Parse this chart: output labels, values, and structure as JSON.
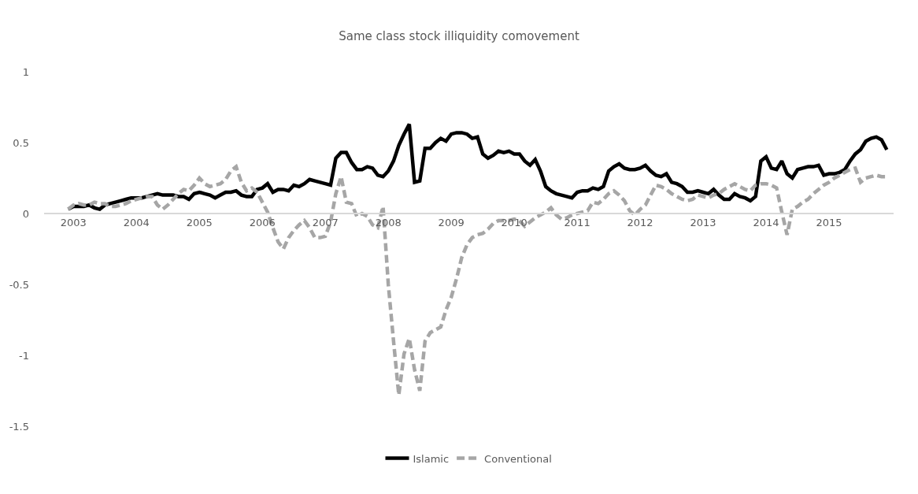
{
  "chart_data": {
    "type": "line",
    "title": "Same class stock illiquidity comovement",
    "categories": [
      null,
      "2003",
      null,
      null,
      null,
      null,
      null,
      null,
      null,
      null,
      null,
      null,
      null,
      "2004",
      null,
      null,
      null,
      null,
      null,
      null,
      null,
      null,
      null,
      null,
      null,
      "2005",
      null,
      null,
      null,
      null,
      null,
      null,
      null,
      null,
      null,
      null,
      null,
      "2006",
      null,
      null,
      null,
      null,
      null,
      null,
      null,
      null,
      null,
      null,
      null,
      "2007",
      null,
      null,
      null,
      null,
      null,
      null,
      null,
      null,
      null,
      null,
      null,
      "2008",
      null,
      null,
      null,
      null,
      null,
      null,
      null,
      null,
      null,
      null,
      null,
      "2009",
      null,
      null,
      null,
      null,
      null,
      null,
      null,
      null,
      null,
      null,
      null,
      "2010",
      null,
      null,
      null,
      null,
      null,
      null,
      null,
      null,
      null,
      null,
      null,
      "2011",
      null,
      null,
      null,
      null,
      null,
      null,
      null,
      null,
      null,
      null,
      null,
      "2012",
      null,
      null,
      null,
      null,
      null,
      null,
      null,
      null,
      null,
      null,
      null,
      "2013",
      null,
      null,
      null,
      null,
      null,
      null,
      null,
      null,
      null,
      null,
      null,
      "2014",
      null,
      null,
      null,
      null,
      null,
      null,
      null,
      null,
      null,
      null,
      null,
      "2015",
      null,
      null,
      null,
      null,
      null,
      null,
      null,
      null,
      null,
      null,
      null
    ],
    "series": [
      {
        "name": "Islamic",
        "color": "#000000",
        "line_style": "solid",
        "values": [
          0.03,
          0.05,
          0.05,
          0.05,
          0.06,
          0.04,
          0.03,
          0.06,
          0.07,
          0.08,
          0.09,
          0.1,
          0.11,
          0.11,
          0.11,
          0.12,
          0.13,
          0.14,
          0.13,
          0.13,
          0.13,
          0.12,
          0.12,
          0.1,
          0.14,
          0.15,
          0.14,
          0.13,
          0.11,
          0.13,
          0.15,
          0.15,
          0.16,
          0.13,
          0.12,
          0.12,
          0.17,
          0.18,
          0.21,
          0.15,
          0.17,
          0.17,
          0.16,
          0.2,
          0.19,
          0.21,
          0.24,
          0.23,
          0.22,
          0.21,
          0.2,
          0.39,
          0.43,
          0.43,
          0.36,
          0.31,
          0.31,
          0.33,
          0.32,
          0.27,
          0.26,
          0.3,
          0.37,
          0.48,
          0.56,
          0.63,
          0.22,
          0.23,
          0.46,
          0.46,
          0.5,
          0.53,
          0.51,
          0.56,
          0.57,
          0.57,
          0.56,
          0.53,
          0.54,
          0.42,
          0.39,
          0.41,
          0.44,
          0.43,
          0.44,
          0.42,
          0.42,
          0.37,
          0.34,
          0.38,
          0.3,
          0.19,
          0.16,
          0.14,
          0.13,
          0.12,
          0.11,
          0.15,
          0.16,
          0.16,
          0.18,
          0.17,
          0.19,
          0.3,
          0.33,
          0.35,
          0.32,
          0.31,
          0.31,
          0.32,
          0.34,
          0.3,
          0.27,
          0.26,
          0.28,
          0.22,
          0.21,
          0.19,
          0.15,
          0.15,
          0.16,
          0.15,
          0.14,
          0.17,
          0.13,
          0.1,
          0.1,
          0.14,
          0.12,
          0.11,
          0.09,
          0.12,
          0.37,
          0.4,
          0.32,
          0.31,
          0.37,
          0.28,
          0.25,
          0.31,
          0.32,
          0.33,
          0.33,
          0.34,
          0.27,
          0.28,
          0.28,
          0.29,
          0.31,
          0.37,
          0.42,
          0.45,
          0.51,
          0.53,
          0.54,
          0.52,
          0.45
        ]
      },
      {
        "name": "Conventional",
        "color": "#a6a6a6",
        "line_style": "dashed",
        "values": [
          0.03,
          0.06,
          0.07,
          0.06,
          0.06,
          0.08,
          0.07,
          0.07,
          0.05,
          0.05,
          0.06,
          0.07,
          0.09,
          0.1,
          0.11,
          0.12,
          0.12,
          0.06,
          0.03,
          0.06,
          0.1,
          0.14,
          0.17,
          0.16,
          0.2,
          0.25,
          0.21,
          0.19,
          0.2,
          0.21,
          0.24,
          0.3,
          0.33,
          0.22,
          0.16,
          0.18,
          0.15,
          0.08,
          0.01,
          -0.1,
          -0.2,
          -0.25,
          -0.17,
          -0.12,
          -0.08,
          -0.05,
          -0.1,
          -0.17,
          -0.17,
          -0.16,
          -0.06,
          0.14,
          0.26,
          0.08,
          0.07,
          -0.02,
          0.0,
          -0.02,
          -0.08,
          -0.1,
          0.05,
          -0.5,
          -0.9,
          -1.28,
          -0.99,
          -0.88,
          -1.1,
          -1.25,
          -0.9,
          -0.84,
          -0.82,
          -0.8,
          -0.68,
          -0.59,
          -0.46,
          -0.31,
          -0.22,
          -0.17,
          -0.15,
          -0.14,
          -0.11,
          -0.07,
          -0.05,
          -0.05,
          -0.05,
          -0.04,
          -0.05,
          -0.09,
          -0.06,
          -0.03,
          -0.01,
          0.01,
          0.04,
          -0.01,
          -0.04,
          -0.03,
          -0.01,
          0.0,
          0.01,
          0.02,
          0.08,
          0.07,
          0.1,
          0.14,
          0.16,
          0.13,
          0.09,
          0.02,
          -0.01,
          0.03,
          0.06,
          0.13,
          0.2,
          0.19,
          0.17,
          0.14,
          0.12,
          0.1,
          0.09,
          0.1,
          0.13,
          0.12,
          0.11,
          0.13,
          0.14,
          0.17,
          0.19,
          0.21,
          0.19,
          0.17,
          0.16,
          0.2,
          0.21,
          0.21,
          0.2,
          0.18,
          0.01,
          -0.15,
          0.03,
          0.05,
          0.08,
          0.1,
          0.14,
          0.17,
          0.2,
          0.22,
          0.25,
          0.27,
          0.29,
          0.31,
          0.32,
          0.22,
          0.25,
          0.26,
          0.27,
          0.26,
          0.26
        ]
      }
    ],
    "ylim": [
      -1.5,
      1
    ],
    "yticks": [
      -1.5,
      -1,
      -0.5,
      0,
      0.5,
      1
    ],
    "grid": false,
    "legend": "bottom",
    "marker": "none"
  }
}
